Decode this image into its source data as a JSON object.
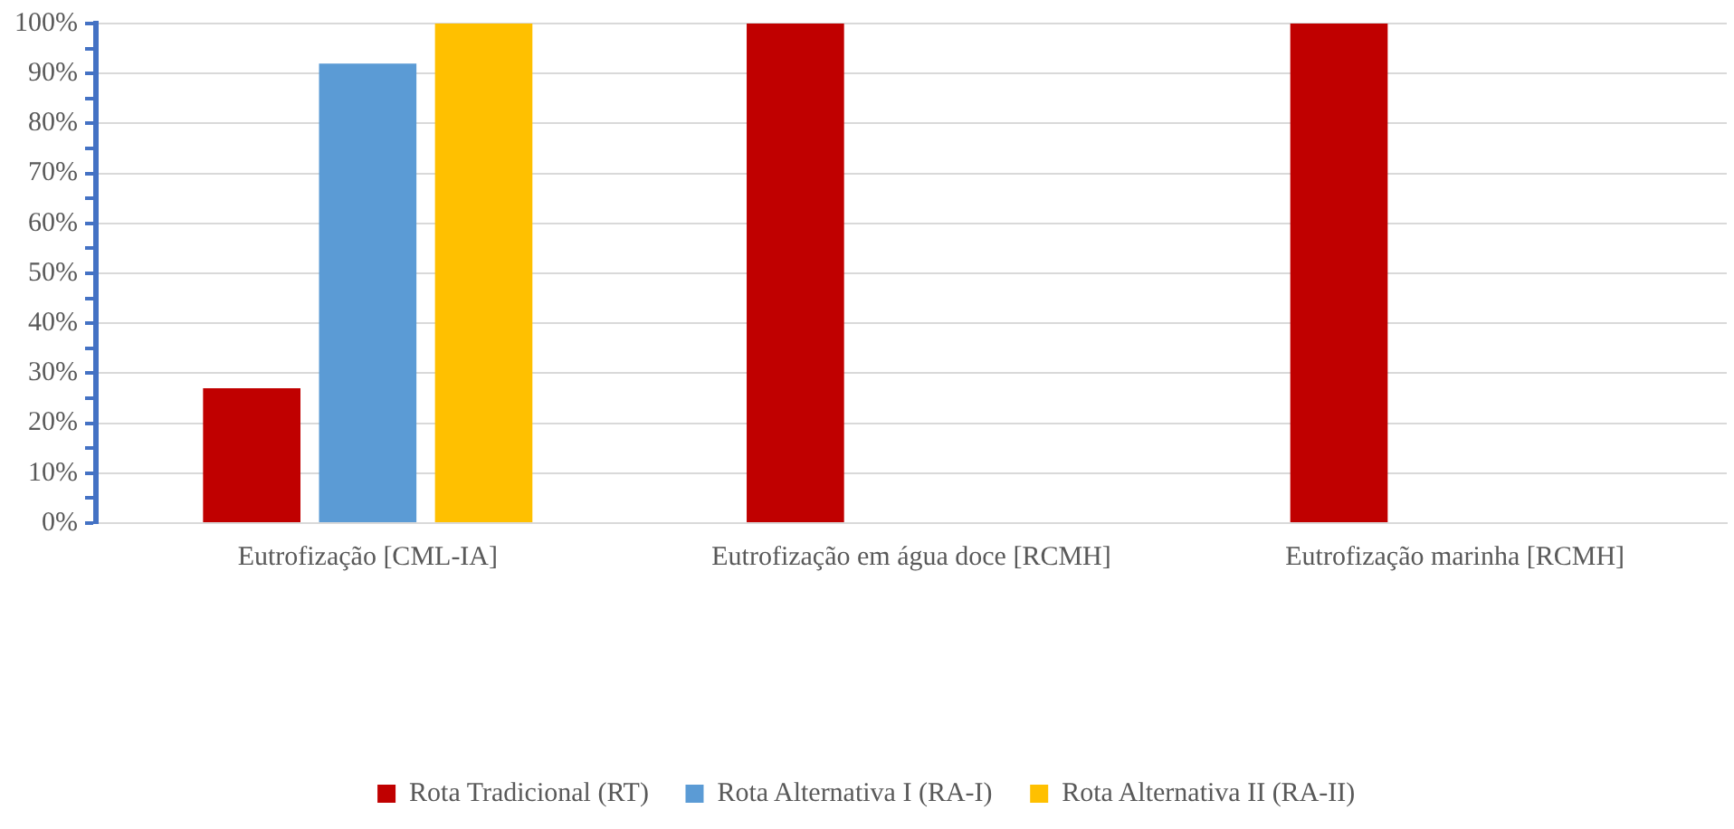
{
  "chart_data": {
    "type": "bar",
    "categories": [
      "Eutrofização [CML-IA]",
      "Eutrofização em água doce [RCMH]",
      "Eutrofização marinha [RCMH]"
    ],
    "series": [
      {
        "name": "Rota Tradicional (RT)",
        "color": "#c00000",
        "values": [
          27,
          100,
          100
        ]
      },
      {
        "name": "Rota Alternativa I (RA-I)",
        "color": "#5b9bd5",
        "values": [
          92,
          null,
          null
        ]
      },
      {
        "name": "Rota Alternativa II (RA-II)",
        "color": "#ffc000",
        "values": [
          100,
          null,
          null
        ]
      }
    ],
    "ylim": [
      0,
      100
    ],
    "yticks": [
      {
        "value": 0,
        "label": "0%"
      },
      {
        "value": 5,
        "label": null
      },
      {
        "value": 10,
        "label": "10%"
      },
      {
        "value": 15,
        "label": null
      },
      {
        "value": 20,
        "label": "20%"
      },
      {
        "value": 25,
        "label": null
      },
      {
        "value": 30,
        "label": "30%"
      },
      {
        "value": 35,
        "label": null
      },
      {
        "value": 40,
        "label": "40%"
      },
      {
        "value": 45,
        "label": null
      },
      {
        "value": 50,
        "label": "50%"
      },
      {
        "value": 55,
        "label": null
      },
      {
        "value": 60,
        "label": "60%"
      },
      {
        "value": 65,
        "label": null
      },
      {
        "value": 70,
        "label": "70%"
      },
      {
        "value": 75,
        "label": null
      },
      {
        "value": 80,
        "label": "80%"
      },
      {
        "value": 85,
        "label": null
      },
      {
        "value": 90,
        "label": "90%"
      },
      {
        "value": 95,
        "label": null
      },
      {
        "value": 100,
        "label": "100%"
      }
    ],
    "grid": "y",
    "legend": "bottom"
  }
}
